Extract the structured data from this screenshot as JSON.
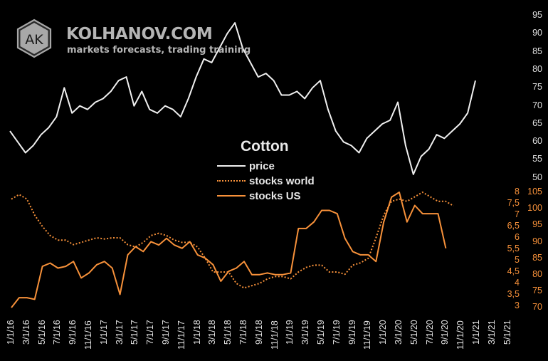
{
  "brand": {
    "logo_text": "AK",
    "name": "KOLHANOV.COM",
    "tagline": "markets forecasts, trading training"
  },
  "colors": {
    "background": "#000000",
    "price": "#f0f0f0",
    "stocks": "#f7913a",
    "brand_gray": "#b5b5b5"
  },
  "legend": {
    "title": "Cotton",
    "items": [
      {
        "label": "price",
        "style": "solid",
        "color": "#f0f0f0"
      },
      {
        "label": "stocks world",
        "style": "dotted",
        "color": "#f7913a"
      },
      {
        "label": "stocks US",
        "style": "solid",
        "color": "#f7913a"
      }
    ]
  },
  "axes": {
    "price_ticks": [
      "95",
      "90",
      "85",
      "80",
      "75",
      "70",
      "65",
      "60",
      "55",
      "50"
    ],
    "stocks_us_ticks": [
      "105",
      "100",
      "95",
      "90",
      "85",
      "80",
      "75",
      "70"
    ],
    "stocks_world_ticks": [
      "8",
      "7,5",
      "7",
      "6,5",
      "6",
      "5,5",
      "5",
      "4,5",
      "4",
      "3,5",
      "3"
    ],
    "x_ticks": [
      "1/1/16",
      "3/1/16",
      "5/1/16",
      "7/1/16",
      "9/1/16",
      "11/1/16",
      "1/1/17",
      "3/1/17",
      "5/1/17",
      "7/1/17",
      "9/1/17",
      "11/1/17",
      "1/1/18",
      "3/1/18",
      "5/1/18",
      "7/1/18",
      "9/1/18",
      "11/1/18",
      "1/1/19",
      "3/1/19",
      "5/1/19",
      "7/1/19",
      "9/1/19",
      "11/1/19",
      "1/1/20",
      "3/1/20",
      "5/1/20",
      "7/1/20",
      "9/1/20",
      "11/1/20",
      "1/1/21",
      "3/1/21",
      "5/1/21"
    ]
  },
  "chart_data": {
    "type": "line",
    "title": "Cotton",
    "xlabel": "",
    "x_range": [
      "1/1/16",
      "5/1/21"
    ],
    "x": [
      "1/1/16",
      "2/1/16",
      "3/1/16",
      "4/1/16",
      "5/1/16",
      "6/1/16",
      "7/1/16",
      "8/1/16",
      "9/1/16",
      "10/1/16",
      "11/1/16",
      "12/1/16",
      "1/1/17",
      "2/1/17",
      "3/1/17",
      "4/1/17",
      "5/1/17",
      "6/1/17",
      "7/1/17",
      "8/1/17",
      "9/1/17",
      "10/1/17",
      "11/1/17",
      "12/1/17",
      "1/1/18",
      "2/1/18",
      "3/1/18",
      "4/1/18",
      "5/1/18",
      "6/1/18",
      "7/1/18",
      "8/1/18",
      "9/1/18",
      "10/1/18",
      "11/1/18",
      "12/1/18",
      "1/1/19",
      "2/1/19",
      "3/1/19",
      "4/1/19",
      "5/1/19",
      "6/1/19",
      "7/1/19",
      "8/1/19",
      "9/1/19",
      "10/1/19",
      "11/1/19",
      "12/1/19",
      "1/1/20",
      "2/1/20",
      "3/1/20",
      "4/1/20",
      "5/1/20",
      "6/1/20",
      "7/1/20",
      "8/1/20",
      "9/1/20",
      "10/1/20",
      "11/1/20",
      "12/1/20",
      "1/1/21"
    ],
    "series": [
      {
        "name": "price",
        "axis": "right-outer (50-95)",
        "values": [
          63,
          60,
          57,
          59,
          62,
          64,
          67,
          75,
          68,
          70,
          69,
          71,
          72,
          74,
          77,
          78,
          70,
          74,
          69,
          68,
          70,
          69,
          67,
          72,
          78,
          83,
          82,
          86,
          90,
          93,
          86,
          82,
          78,
          79,
          77,
          73,
          73,
          74,
          72,
          75,
          77,
          69,
          63,
          60,
          59,
          57,
          61,
          63,
          65,
          66,
          71,
          59,
          51,
          56,
          58,
          62,
          61,
          63,
          65,
          68,
          77
        ],
        "ylim": [
          50,
          95
        ]
      },
      {
        "name": "stocks world",
        "axis": "left orange (3-8)",
        "values": [
          7.7,
          7.9,
          7.7,
          7.0,
          6.5,
          6.1,
          5.9,
          5.9,
          5.7,
          5.8,
          5.9,
          6.0,
          5.95,
          6.0,
          6.0,
          5.7,
          5.6,
          5.8,
          6.1,
          6.2,
          6.1,
          5.9,
          5.8,
          5.8,
          5.6,
          5.1,
          4.5,
          4.5,
          4.5,
          4.0,
          3.8,
          3.9,
          4.0,
          4.2,
          4.3,
          4.3,
          4.2,
          4.5,
          4.7,
          4.8,
          4.8,
          4.5,
          4.5,
          4.4,
          4.8,
          4.9,
          5.1,
          6.0,
          7.0,
          7.6,
          7.7,
          7.6,
          7.8,
          8.0,
          7.8,
          7.6,
          7.6,
          7.4
        ],
        "ylim": [
          3,
          8
        ]
      },
      {
        "name": "stocks US",
        "axis": "right orange (70-105)",
        "values": [
          70,
          73,
          73,
          72.5,
          82.5,
          83.5,
          82,
          82.5,
          84,
          79,
          80.5,
          83,
          84,
          82,
          74,
          86,
          88.5,
          87,
          90,
          89,
          91,
          89,
          88,
          90,
          86,
          85,
          83,
          78,
          81,
          82,
          84,
          80,
          80,
          80.5,
          80,
          80,
          80.5,
          94,
          94,
          96,
          99.5,
          99.5,
          98.5,
          91,
          87,
          86,
          86,
          84,
          96,
          103.5,
          105,
          96,
          101,
          98.5,
          98.5,
          98.5,
          88
        ],
        "ylim": [
          70,
          105
        ]
      }
    ],
    "legend_position": "center",
    "grid": false
  }
}
